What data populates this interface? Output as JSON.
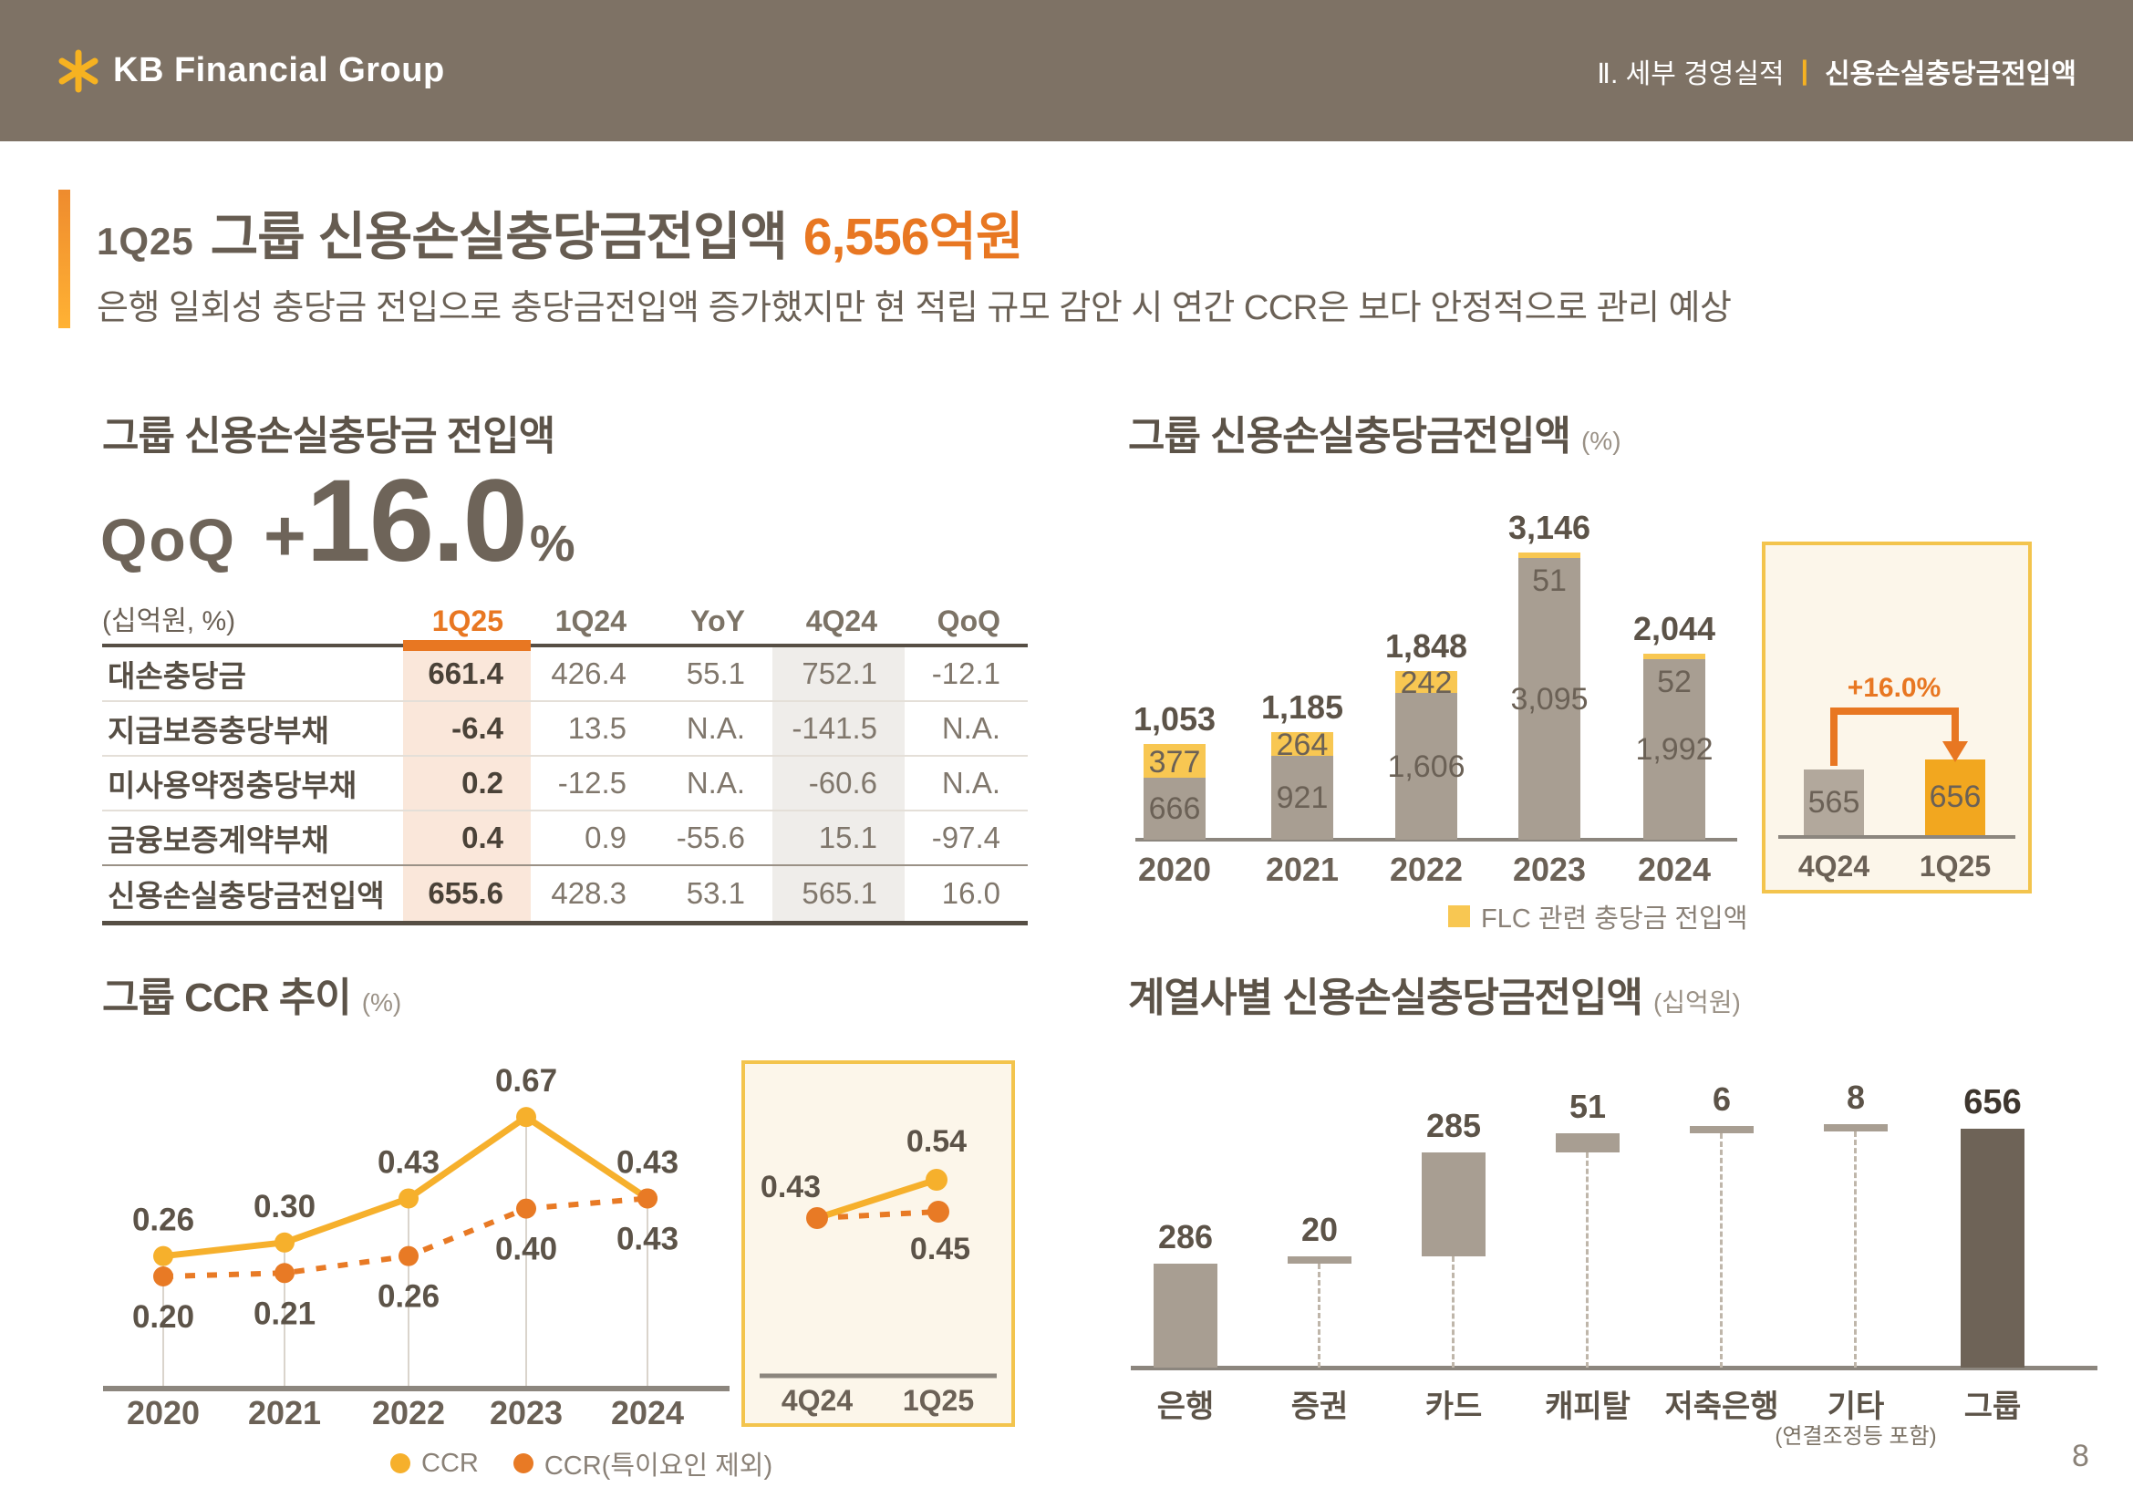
{
  "page": {
    "number": "8"
  },
  "header": {
    "brand": "KB Financial Group",
    "section": "Ⅱ. 세부 경영실적",
    "divider": "|",
    "page_title": "신용손실충당금전입액",
    "bg_color": "#7E7265",
    "star_color": "#F6B221"
  },
  "title_block": {
    "prefix": "1Q25",
    "title": "그룹 신용손실충당금전입액",
    "amount": "6,556억원",
    "subtitle": "은행 일회성 충당금 전입으로 충당금전입액 증가했지만 현 적립 규모 감안 시 연간 CCR은 보다 안정적으로 관리 예상",
    "accent_color": "#E87722"
  },
  "provision_section": {
    "title": "그룹 신용손실충당금 전입액",
    "kpi": {
      "label": "QoQ",
      "sign": "+",
      "value": "16.0",
      "unit": "%"
    },
    "table": {
      "unit_label": "(십억원, %)",
      "columns": [
        "1Q25",
        "1Q24",
        "YoY",
        "4Q24",
        "QoQ"
      ],
      "highlight_column": "1Q25",
      "shaded_column": "4Q24",
      "rows": [
        {
          "label": "대손충당금",
          "values": [
            "661.4",
            "426.4",
            "55.1",
            "752.1",
            "-12.1"
          ],
          "total": false
        },
        {
          "label": "지급보증충당부채",
          "values": [
            "-6.4",
            "13.5",
            "N.A.",
            "-141.5",
            "N.A."
          ],
          "total": false
        },
        {
          "label": "미사용약정충당부채",
          "values": [
            "0.2",
            "-12.5",
            "N.A.",
            "-60.6",
            "N.A."
          ],
          "total": false
        },
        {
          "label": "금융보증계약부채",
          "values": [
            "0.4",
            "0.9",
            "-55.6",
            "15.1",
            "-97.4"
          ],
          "total": false
        },
        {
          "label": "신용손실충당금전입액",
          "values": [
            "655.6",
            "428.3",
            "53.1",
            "565.1",
            "16.0"
          ],
          "total": true
        }
      ]
    }
  },
  "annual_section": {
    "title": "그룹 신용손실충당금전입액",
    "unit": "(%)",
    "legend": "FLC 관련 충당금 전입액"
  },
  "ccr_section": {
    "title": "그룹 CCR 추이",
    "unit": "(%)",
    "legend": [
      {
        "name": "CCR",
        "color": "#F6B02C"
      },
      {
        "name": "CCR(특이요인 제외)",
        "color": "#E87A25"
      }
    ]
  },
  "subsidiary_section": {
    "title": "계열사별 신용손실충당금전입액",
    "unit": "(십억원)"
  },
  "colors": {
    "accent_orange": "#E87722",
    "gold": "#F6B221",
    "bar_gray": "#A89E92",
    "bar_flc_yellow": "#F8C752",
    "bar_dark": "#6E6357",
    "inset_border": "#F3C44D",
    "inset_bg": "#FCF6EA",
    "axis": "#8C867E",
    "highlight_col_bg": "#FAE7DA",
    "shaded_col_bg": "#EFEDEA"
  },
  "chart_data": [
    {
      "id": "annual_provision",
      "type": "bar",
      "stacked": true,
      "title": "그룹 신용손실충당금전입액",
      "unit": "(%)",
      "categories": [
        "2020",
        "2021",
        "2022",
        "2023",
        "2024"
      ],
      "series": [
        {
          "name": "",
          "role": "base",
          "color": "#A89E92",
          "values": [
            666,
            921,
            1606,
            3095,
            1992
          ],
          "labels": [
            "666",
            "921",
            "1,606",
            "3,095",
            "1,992"
          ]
        },
        {
          "name": "FLC 관련 충당금 전입액",
          "role": "flc",
          "color": "#F8C752",
          "values": [
            377,
            264,
            242,
            51,
            52
          ],
          "labels": [
            "377",
            "264",
            "242",
            "51",
            "52"
          ]
        }
      ],
      "totals": [
        1053,
        1185,
        1848,
        3146,
        2044
      ],
      "total_labels": [
        "1,053",
        "1,185",
        "1,848",
        "3,146",
        "2,044"
      ],
      "legend": "FLC 관련 충당금 전입액",
      "legend_position": "bottom",
      "ylim": [
        0,
        3300
      ],
      "grid": false
    },
    {
      "id": "qoq_inset",
      "type": "bar",
      "categories": [
        "4Q24",
        "1Q25"
      ],
      "values": [
        565,
        656
      ],
      "labels": [
        "565",
        "656"
      ],
      "colors": [
        "#B2A89C",
        "#F2A71F"
      ],
      "annotation": "+16.0%",
      "annotation_color": "#E87722"
    },
    {
      "id": "ccr_trend",
      "type": "line",
      "title": "그룹 CCR 추이",
      "unit": "(%)",
      "categories": [
        "2020",
        "2021",
        "2022",
        "2023",
        "2024"
      ],
      "series": [
        {
          "name": "CCR",
          "color": "#F6B02C",
          "style": "solid",
          "values": [
            0.26,
            0.3,
            0.43,
            0.67,
            0.43
          ],
          "point_labels": [
            "0.26",
            "0.30",
            "0.43",
            "0.67",
            "0.43"
          ]
        },
        {
          "name": "CCR(특이요인 제외)",
          "color": "#E87A25",
          "style": "dashed",
          "values": [
            0.2,
            0.21,
            0.26,
            0.4,
            0.43
          ],
          "point_labels": [
            "0.20",
            "0.21",
            "0.26",
            "0.40",
            "0.43"
          ]
        }
      ],
      "ylim": [
        0,
        0.8
      ],
      "legend_position": "bottom",
      "grid": true
    },
    {
      "id": "ccr_inset",
      "type": "line",
      "categories": [
        "4Q24",
        "1Q25"
      ],
      "series": [
        {
          "name": "CCR",
          "color": "#F6B02C",
          "style": "solid",
          "values": [
            0.43,
            0.54
          ],
          "point_labels": [
            "",
            "0.54"
          ]
        },
        {
          "name": "CCR(특이요인 제외)",
          "color": "#E87A25",
          "style": "dashed",
          "values": [
            0.43,
            0.45
          ],
          "point_labels": [
            "0.43",
            "0.45"
          ]
        }
      ]
    },
    {
      "id": "subsidiary_provision",
      "type": "waterfall",
      "title": "계열사별 신용손실충당금전입액",
      "unit": "(십억원)",
      "categories": [
        "은행",
        "증권",
        "카드",
        "캐피탈",
        "저축은행",
        "기타",
        "그룹"
      ],
      "values": [
        286,
        20,
        285,
        51,
        6,
        8,
        656
      ],
      "labels": [
        "286",
        "20",
        "285",
        "51",
        "6",
        "8",
        "656"
      ],
      "total_index": 6,
      "sub_label_index": 5,
      "sub_label": "(연결조정등 포함)"
    }
  ]
}
